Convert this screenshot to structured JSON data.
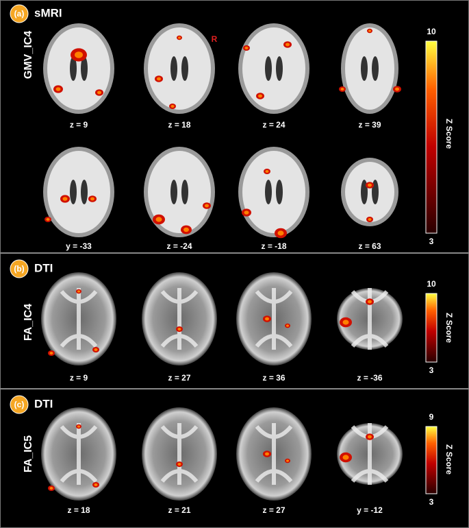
{
  "panels": [
    {
      "label": "(a)",
      "modality": "sMRI",
      "component": "GMV_IC4",
      "orientation_marker": "R",
      "slices": [
        "z = 9",
        "z = 18",
        "z = 24",
        "z = 39",
        "y = -33",
        "z = -24",
        "z = -18",
        "z = 63"
      ],
      "colorbar": {
        "title": "Z Score",
        "max": 10,
        "min": 3
      }
    },
    {
      "label": "(b)",
      "modality": "DTI",
      "component": "FA_IC4",
      "slices": [
        "z = 9",
        "z = 27",
        "z = 36",
        "z = -36"
      ],
      "colorbar": {
        "title": "Z Score",
        "max": 10,
        "min": 3
      }
    },
    {
      "label": "(c)",
      "modality": "DTI",
      "component": "FA_IC5",
      "slices": [
        "z = 18",
        "z = 21",
        "z = 27",
        "y = -12"
      ],
      "colorbar": {
        "title": "Z Score",
        "max": 9,
        "min": 3
      }
    }
  ]
}
